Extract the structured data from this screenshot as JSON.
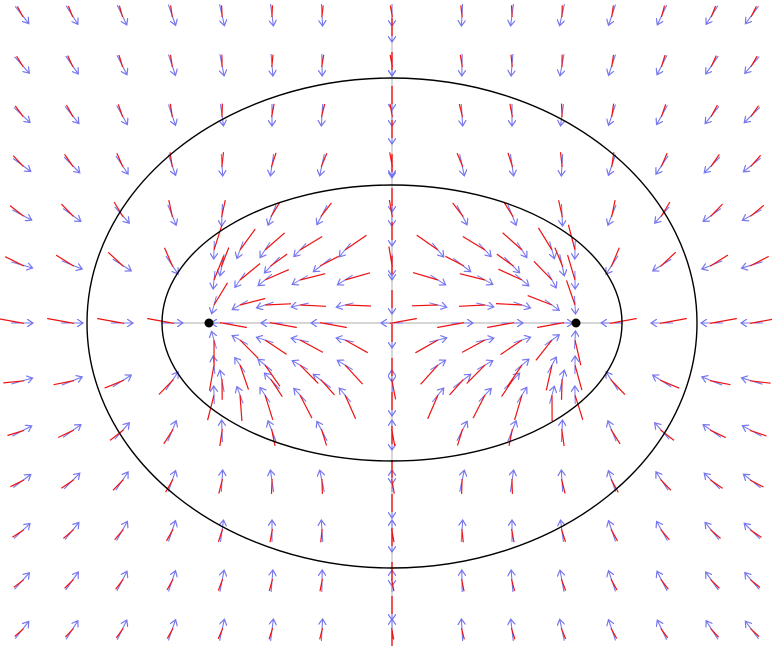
{
  "figure": {
    "kind": "vector-field-with-ellipses",
    "colors": {
      "background": "#ffffff",
      "ellipse": "#000000",
      "axis": "#bdbdbd",
      "field_arrow": "#7777ee",
      "tensor_segment": "#ee1111",
      "focus_point": "#000000"
    },
    "elements": {
      "ellipse_count": 2,
      "focus_count": 2,
      "has_horizontal_axis_segment": true,
      "has_vertical_axis_line": true
    }
  }
}
